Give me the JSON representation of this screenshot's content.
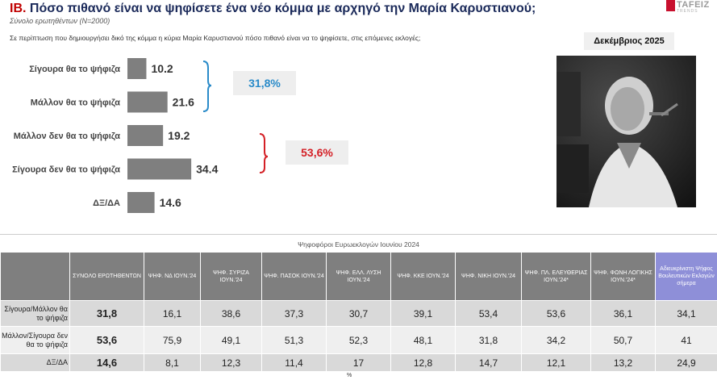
{
  "header": {
    "number": "ΙΒ.",
    "title": "Πόσο πιθανό είναι να ψηφίσετε ένα νέο κόμμα με αρχηγό την Μαρία Καρυστιανού;",
    "subtitle": "Σύνολο ερωτηθέντων (N=2000)",
    "logo_text": "TAFEIZ",
    "logo_sub": "TRENDS"
  },
  "question": "Σε περίπτωση που δημιουργήσει δικό της κόμμα η κύρια Μαρία Καρυστιανού πόσο πιθανό είναι να το ψηφίσετε, στις επόμενες εκλογές;",
  "date_label": "Δεκέμβριος 2025",
  "summary": {
    "positive": "31,8%",
    "negative": "53,6%"
  },
  "colors": {
    "bar": "#7f7f7f",
    "positive_bracket": "#2a8bc9",
    "negative_bracket": "#d42026",
    "purple_header": "#8e8fd8"
  },
  "chart_data": {
    "type": "bar",
    "orientation": "horizontal",
    "categories": [
      "Σίγουρα θα το ψήφιζα",
      "Μάλλον θα το ψήφιζα",
      "Μάλλον δεν θα το ψήφιζα",
      "Σίγουρα δεν θα το ψήφιζα",
      "ΔΞ/ΔΑ"
    ],
    "values": [
      10.2,
      21.6,
      19.2,
      34.4,
      14.6
    ],
    "value_labels": [
      "10.2",
      "21.6",
      "19.2",
      "34.4",
      "14.6"
    ],
    "title": "",
    "xlabel": "",
    "ylabel": "",
    "grid": false
  },
  "table": {
    "title": "Ψηφοφόροι Ευρωεκλογών Ιουνίου 2024",
    "columns": [
      "ΣΥΝΟΛΟ ΕΡΩΤΗΘΕΝΤΩΝ",
      "ΨΗΦ. ΝΔ ΙΟΥΝ.'24",
      "ΨΗΦ. ΣΥΡΙΖΑ ΙΟΥΝ.'24",
      "ΨΗΦ. ΠΑΣΟΚ ΙΟΥΝ.'24",
      "ΨΗΦ. ΕΛΛ. ΛΥΣΗ ΙΟΥΝ.'24",
      "ΨΗΦ. ΚΚΕ ΙΟΥΝ.'24",
      "ΨΗΦ. ΝΙΚΗ ΙΟΥΝ.'24",
      "ΨΗΦ. ΠΛ. ΕΛΕΥΘΕΡΙΑΣ ΙΟΥΝ.'24*",
      "ΨΗΦ. ΦΩΝΗ ΛΟΓΙΚΗΣ ΙΟΥΝ.'24*",
      "Αδιευκρίνιστη Ψήφος Βουλευτικών Εκλογών σήμερα"
    ],
    "rows": [
      {
        "label": "Σίγουρα/Μάλλον θα το ψήφιζα",
        "values": [
          "31,8",
          "16,1",
          "38,6",
          "37,3",
          "30,7",
          "39,1",
          "53,4",
          "53,6",
          "36,1",
          "34,1"
        ]
      },
      {
        "label": "Μάλλον/Σίγουρα δεν θα το ψήφιζα",
        "values": [
          "53,6",
          "75,9",
          "49,1",
          "51,3",
          "52,3",
          "48,1",
          "31,8",
          "34,2",
          "50,7",
          "41"
        ]
      },
      {
        "label": "ΔΞ/ΔΑ",
        "values": [
          "14,6",
          "8,1",
          "12,3",
          "11,4",
          "17",
          "12,8",
          "14,7",
          "12,1",
          "13,2",
          "24,9"
        ]
      }
    ],
    "footnote": "%"
  }
}
